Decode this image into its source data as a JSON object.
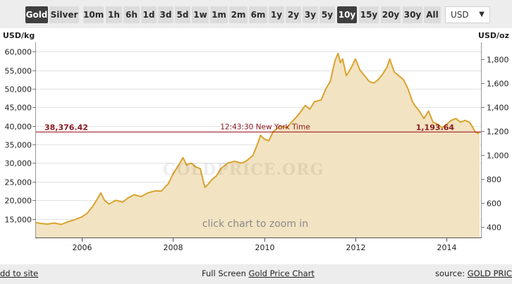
{
  "toolbar": {
    "metals": [
      {
        "label": "Gold",
        "active": true
      },
      {
        "label": "Silver",
        "active": false
      }
    ],
    "ranges": [
      {
        "label": "10m",
        "active": false
      },
      {
        "label": "1h",
        "active": false
      },
      {
        "label": "6h",
        "active": false
      },
      {
        "label": "1d",
        "active": false
      },
      {
        "label": "3d",
        "active": false
      },
      {
        "label": "5d",
        "active": false
      },
      {
        "label": "1w",
        "active": false
      },
      {
        "label": "1m",
        "active": false
      },
      {
        "label": "2m",
        "active": false
      },
      {
        "label": "6m",
        "active": false
      },
      {
        "label": "1y",
        "active": false
      },
      {
        "label": "2y",
        "active": false
      },
      {
        "label": "3y",
        "active": false
      },
      {
        "label": "5y",
        "active": false
      },
      {
        "label": "10y",
        "active": true
      },
      {
        "label": "15y",
        "active": false
      },
      {
        "label": "20y",
        "active": false
      },
      {
        "label": "30y",
        "active": false
      },
      {
        "label": "All",
        "active": false
      }
    ],
    "currency": "USD"
  },
  "chart": {
    "watermark": "GOLDPRICE.ORG",
    "zoom_hint": "click chart to zoom in",
    "current_kg_label": "38,376.42",
    "current_oz_label": "1,193.64",
    "time_label": "12:43:30 New York Time"
  },
  "chart_data": {
    "type": "area",
    "ylabel_left": "USD/kg",
    "ylabel_right": "USD/oz",
    "xlim": [
      2005.0,
      2014.75
    ],
    "ylim": [
      10000,
      62500
    ],
    "right_ylim": [
      311,
      1944
    ],
    "x_ticks": [
      {
        "value": 2006,
        "label": "2006"
      },
      {
        "value": 2008,
        "label": "2008"
      },
      {
        "value": 2010,
        "label": "2010"
      },
      {
        "value": 2012,
        "label": "2012"
      },
      {
        "value": 2014,
        "label": "2014"
      }
    ],
    "y_ticks_left": [
      {
        "value": 15000,
        "label": "15,000"
      },
      {
        "value": 20000,
        "label": "20,000"
      },
      {
        "value": 25000,
        "label": "25,000"
      },
      {
        "value": 30000,
        "label": "30,000"
      },
      {
        "value": 35000,
        "label": "35,000"
      },
      {
        "value": 40000,
        "label": "40,000"
      },
      {
        "value": 45000,
        "label": "45,000"
      },
      {
        "value": 50000,
        "label": "50,000"
      },
      {
        "value": 55000,
        "label": "55,000"
      },
      {
        "value": 60000,
        "label": "60,000"
      }
    ],
    "y_ticks_right": [
      {
        "value": 400,
        "label": "400"
      },
      {
        "value": 600,
        "label": "600"
      },
      {
        "value": 800,
        "label": "800"
      },
      {
        "value": 1000,
        "label": "1,000"
      },
      {
        "value": 1200,
        "label": "1,200"
      },
      {
        "value": 1400,
        "label": "1,400"
      },
      {
        "value": 1600,
        "label": "1,600"
      },
      {
        "value": 1800,
        "label": "1,800"
      }
    ],
    "current_value_kg": 38376.42,
    "current_value_oz": 1193.64,
    "series": [
      {
        "x": [
          2005.0,
          2005.1,
          2005.25,
          2005.4,
          2005.55,
          2005.7,
          2005.85,
          2006.0,
          2006.12,
          2006.25,
          2006.35,
          2006.42,
          2006.5,
          2006.6,
          2006.75,
          2006.9,
          2007.0,
          2007.15,
          2007.3,
          2007.45,
          2007.6,
          2007.75,
          2007.9,
          2008.0,
          2008.1,
          2008.15,
          2008.22,
          2008.3,
          2008.4,
          2008.5,
          2008.6,
          2008.7,
          2008.75,
          2008.85,
          2008.95,
          2009.05,
          2009.2,
          2009.35,
          2009.5,
          2009.6,
          2009.75,
          2009.85,
          2009.92,
          2010.0,
          2010.1,
          2010.2,
          2010.35,
          2010.5,
          2010.6,
          2010.75,
          2010.9,
          2011.0,
          2011.1,
          2011.25,
          2011.35,
          2011.45,
          2011.55,
          2011.62,
          2011.67,
          2011.72,
          2011.8,
          2011.9,
          2012.0,
          2012.1,
          2012.2,
          2012.3,
          2012.4,
          2012.5,
          2012.6,
          2012.7,
          2012.75,
          2012.85,
          2012.95,
          2013.05,
          2013.15,
          2013.25,
          2013.3,
          2013.4,
          2013.5,
          2013.6,
          2013.7,
          2013.8,
          2013.9,
          2014.0,
          2014.1,
          2014.2,
          2014.3,
          2014.4,
          2014.5,
          2014.55,
          2014.62,
          2014.68,
          2014.72
        ],
        "values": [
          14000,
          13800,
          13600,
          13900,
          13500,
          14200,
          14800,
          15500,
          16500,
          18500,
          20500,
          22000,
          20000,
          19000,
          20000,
          19500,
          20500,
          21500,
          21000,
          22000,
          22500,
          22500,
          24500,
          27000,
          29000,
          30000,
          31500,
          29500,
          30000,
          29000,
          28500,
          23500,
          24000,
          25500,
          26500,
          28500,
          30000,
          30500,
          30000,
          30500,
          32000,
          35000,
          37500,
          36500,
          36000,
          38500,
          40000,
          39500,
          41000,
          43000,
          45500,
          44500,
          46500,
          47000,
          50000,
          52000,
          57500,
          59500,
          57000,
          58000,
          53500,
          55500,
          58000,
          55000,
          53500,
          52000,
          51500,
          52500,
          54000,
          56000,
          58000,
          54500,
          53500,
          52500,
          50000,
          46500,
          45500,
          44000,
          42000,
          44000,
          41000,
          40500,
          39500,
          40500,
          41500,
          42000,
          41000,
          41500,
          41000,
          40000,
          38500,
          38000,
          38376
        ]
      }
    ]
  },
  "footer": {
    "add_to_site": "dd to site",
    "full_screen_prefix": "Full Screen",
    "full_screen_link": "Gold Price Chart",
    "source_prefix": "source:",
    "source_link": "GOLD PRIC"
  },
  "colors": {
    "line": "#d9a32f",
    "fill": "#f2e3c2",
    "current_line": "#a0202a",
    "current_label": "#8a1a22",
    "active_button": "#3f3f3f"
  }
}
